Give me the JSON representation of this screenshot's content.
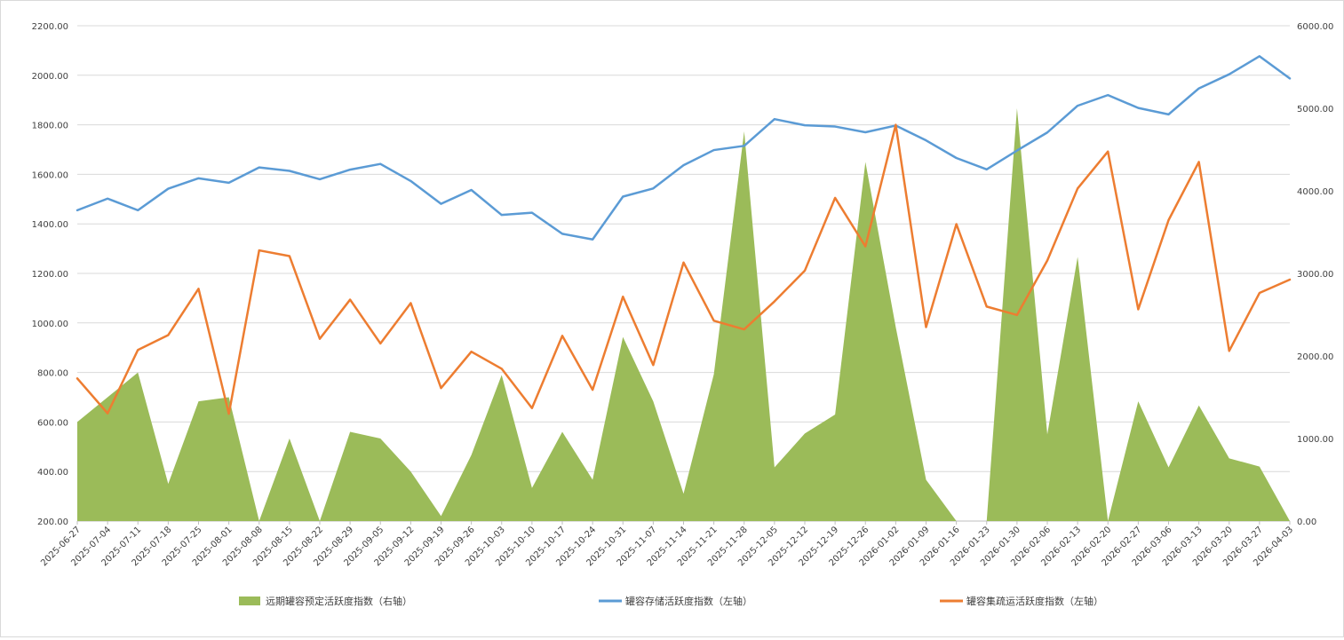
{
  "chart_data": {
    "type": "area+line",
    "title": "",
    "y_left": {
      "min": 200,
      "max": 2200,
      "step": 200,
      "tick_format": "0.00"
    },
    "y_right": {
      "min": 0,
      "max": 6000,
      "step": 1000,
      "tick_format": "0.00"
    },
    "grid": true,
    "legend_position": "bottom",
    "x": [
      "2025-06-27",
      "2025-07-04",
      "2025-07-11",
      "2025-07-18",
      "2025-07-25",
      "2025-08-01",
      "2025-08-08",
      "2025-08-15",
      "2025-08-22",
      "2025-08-29",
      "2025-09-05",
      "2025-09-12",
      "2025-09-19",
      "2025-09-26",
      "2025-10-03",
      "2025-10-10",
      "2025-10-17",
      "2025-10-24",
      "2025-10-31",
      "2025-11-07",
      "2025-11-14",
      "2025-11-21",
      "2025-11-28",
      "2025-12-05",
      "2025-12-12",
      "2025-12-19",
      "2025-12-26",
      "2026-01-02",
      "2026-01-09",
      "2026-01-16",
      "2026-01-23",
      "2026-01-30",
      "2026-02-06",
      "2026-02-13",
      "2026-02-20",
      "2026-02-27",
      "2026-03-06",
      "2026-03-13",
      "2026-03-20",
      "2026-03-27",
      "2026-04-03"
    ],
    "series": [
      {
        "name": "远期罐容预定活跃度指数（右轴）",
        "type": "area",
        "axis": "right",
        "color": "#9bbb59",
        "values": [
          1200,
          1500,
          1800,
          450,
          1450,
          1500,
          0,
          1000,
          0,
          1080,
          1000,
          600,
          60,
          800,
          1770,
          400,
          1080,
          500,
          2230,
          1450,
          330,
          1780,
          4720,
          650,
          1060,
          1290,
          4350,
          2350,
          500,
          0,
          0,
          5000,
          1050,
          3200,
          0,
          1450,
          650,
          1400,
          760,
          660,
          0
        ]
      },
      {
        "name": "罐容存储活跃度指数（左轴）",
        "type": "line",
        "axis": "left",
        "color": "#5b9bd5",
        "values": [
          1455,
          1502,
          1455,
          1542,
          1584,
          1566,
          1628,
          1614,
          1580,
          1619,
          1642,
          1573,
          1481,
          1537,
          1436,
          1445,
          1360,
          1337,
          1510,
          1543,
          1637,
          1698,
          1715,
          1823,
          1798,
          1793,
          1770,
          1797,
          1737,
          1666,
          1620,
          1696,
          1769,
          1877,
          1920,
          1868,
          1842,
          1947,
          2004,
          2077,
          1987
        ]
      },
      {
        "name": "罐容集疏运活跃度指数（左轴）",
        "type": "line",
        "axis": "left",
        "color": "#ed7d31",
        "values": [
          776,
          635,
          891,
          951,
          1138,
          633,
          1293,
          1270,
          936,
          1094,
          917,
          1080,
          737,
          884,
          815,
          656,
          948,
          730,
          1106,
          830,
          1244,
          1009,
          974,
          1087,
          1211,
          1505,
          1309,
          1800,
          983,
          1399,
          1066,
          1032,
          1252,
          1543,
          1692,
          1055,
          1415,
          1650,
          887,
          1121,
          1175
        ]
      }
    ]
  }
}
